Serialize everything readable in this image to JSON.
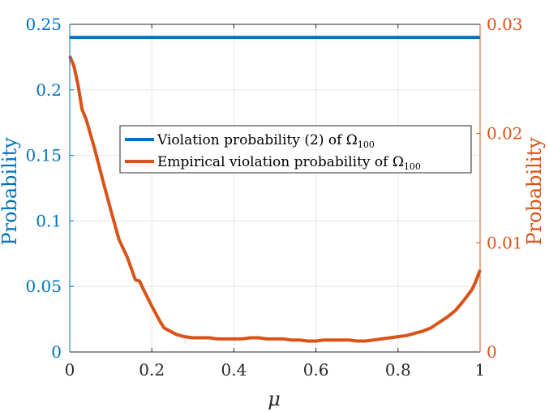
{
  "chart_data": {
    "type": "line",
    "xlabel": "μ",
    "ylabel_left": "Probability",
    "ylabel_right": "Probability",
    "xlim": [
      0,
      1
    ],
    "ylim_left": [
      0,
      0.25
    ],
    "ylim_right": [
      0,
      0.03
    ],
    "grid": true,
    "legend_position": "center",
    "x_ticks": [
      "0",
      "0.2",
      "0.4",
      "0.6",
      "0.8",
      "1"
    ],
    "y_left_ticks": [
      "0",
      "0.05",
      "0.1",
      "0.15",
      "0.2",
      "0.25"
    ],
    "y_right_ticks": [
      "0",
      "0.01",
      "0.02",
      "0.03"
    ],
    "series": [
      {
        "name": "Violation probability (2) of Ω",
        "name_sub": "100",
        "axis": "left",
        "color": "#0072BD",
        "x": [
          0,
          1
        ],
        "y": [
          0.24,
          0.24
        ]
      },
      {
        "name": "Empirical violation probability of Ω",
        "name_sub": "100",
        "axis": "right",
        "color": "#D95319",
        "x": [
          0,
          0.01,
          0.02,
          0.03,
          0.04,
          0.05,
          0.06,
          0.08,
          0.1,
          0.12,
          0.14,
          0.16,
          0.17,
          0.18,
          0.2,
          0.22,
          0.23,
          0.24,
          0.26,
          0.28,
          0.3,
          0.32,
          0.34,
          0.36,
          0.38,
          0.4,
          0.42,
          0.44,
          0.46,
          0.48,
          0.5,
          0.52,
          0.54,
          0.56,
          0.58,
          0.6,
          0.62,
          0.64,
          0.66,
          0.68,
          0.7,
          0.72,
          0.74,
          0.76,
          0.78,
          0.8,
          0.82,
          0.84,
          0.86,
          0.88,
          0.9,
          0.92,
          0.94,
          0.96,
          0.98,
          0.99,
          1.0
        ],
        "y": [
          0.0271,
          0.0262,
          0.0245,
          0.0222,
          0.0213,
          0.02,
          0.0187,
          0.0158,
          0.013,
          0.0103,
          0.0087,
          0.0066,
          0.0065,
          0.0057,
          0.0042,
          0.0028,
          0.0022,
          0.002,
          0.0016,
          0.0014,
          0.0013,
          0.0013,
          0.0013,
          0.0012,
          0.0012,
          0.0012,
          0.0012,
          0.0013,
          0.0013,
          0.0012,
          0.0012,
          0.0012,
          0.0011,
          0.0011,
          0.001,
          0.001,
          0.0011,
          0.0011,
          0.0011,
          0.0011,
          0.001,
          0.001,
          0.0011,
          0.0012,
          0.0013,
          0.0014,
          0.0015,
          0.0017,
          0.0019,
          0.0022,
          0.0027,
          0.0032,
          0.0038,
          0.0047,
          0.0057,
          0.0065,
          0.0075
        ]
      }
    ]
  }
}
